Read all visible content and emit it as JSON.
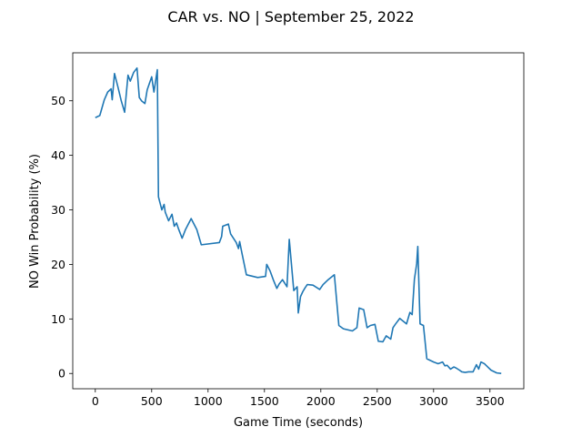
{
  "chart_data": {
    "type": "line",
    "title": "CAR vs. NO | September 25, 2022",
    "xlabel": "Game Time (seconds)",
    "ylabel": "NO Win Probability (%)",
    "xlim": [
      -200,
      3800
    ],
    "ylim": [
      -2.8,
      58.8
    ],
    "xticks": [
      0,
      500,
      1000,
      1500,
      2000,
      2500,
      3000,
      3500
    ],
    "yticks": [
      0,
      10,
      20,
      30,
      40,
      50
    ],
    "grid": false,
    "line_color": "#1f77b4",
    "series": [
      {
        "x": [
          0,
          40,
          80,
          110,
          140,
          150,
          170,
          200,
          230,
          260,
          290,
          310,
          340,
          370,
          390,
          410,
          440,
          460,
          500,
          520,
          550,
          560,
          590,
          610,
          620,
          650,
          680,
          700,
          720,
          740,
          770,
          800,
          850,
          900,
          940,
          1100,
          1120,
          1130,
          1180,
          1200,
          1250,
          1270,
          1280,
          1300,
          1340,
          1440,
          1510,
          1520,
          1550,
          1580,
          1610,
          1630,
          1660,
          1700,
          1720,
          1760,
          1790,
          1800,
          1820,
          1840,
          1860,
          1880,
          1930,
          1990,
          2020,
          2060,
          2120,
          2160,
          2200,
          2280,
          2320,
          2340,
          2380,
          2410,
          2440,
          2480,
          2510,
          2550,
          2580,
          2620,
          2640,
          2660,
          2700,
          2760,
          2790,
          2810,
          2830,
          2850,
          2860,
          2880,
          2910,
          2940,
          2960,
          3000,
          3040,
          3080,
          3100,
          3120,
          3150,
          3180,
          3200,
          3230,
          3250,
          3280,
          3310,
          3330,
          3350,
          3380,
          3400,
          3420,
          3450,
          3480,
          3510,
          3560,
          3600
        ],
        "y": [
          46.9,
          47.3,
          50.2,
          51.6,
          52.2,
          50.2,
          55.0,
          52.6,
          50.0,
          47.9,
          54.7,
          53.6,
          55.2,
          56.0,
          50.6,
          50.0,
          49.5,
          52.0,
          54.4,
          51.6,
          55.7,
          32.4,
          30.0,
          31.0,
          29.6,
          28.0,
          29.2,
          27.0,
          27.6,
          26.4,
          24.8,
          26.4,
          28.4,
          26.4,
          23.6,
          24.0,
          25.1,
          27.0,
          27.4,
          25.6,
          24.0,
          22.9,
          24.2,
          22.1,
          18.1,
          17.6,
          17.8,
          20.0,
          18.8,
          17.1,
          15.6,
          16.4,
          17.2,
          15.9,
          24.6,
          15.2,
          15.9,
          11.1,
          14.1,
          15.0,
          15.7,
          16.3,
          16.2,
          15.4,
          16.3,
          17.1,
          18.1,
          8.8,
          8.2,
          7.8,
          8.4,
          12.0,
          11.7,
          8.4,
          8.8,
          9.0,
          5.9,
          5.8,
          6.9,
          6.3,
          8.4,
          9.0,
          10.1,
          9.1,
          11.2,
          10.8,
          17.3,
          20.1,
          23.3,
          9.1,
          8.8,
          2.7,
          2.5,
          2.1,
          1.8,
          2.1,
          1.4,
          1.5,
          0.8,
          1.2,
          1.0,
          0.6,
          0.3,
          0.2,
          0.3,
          0.3,
          0.3,
          1.6,
          0.8,
          2.1,
          1.8,
          1.2,
          0.6,
          0.1,
          0.0
        ]
      }
    ]
  }
}
